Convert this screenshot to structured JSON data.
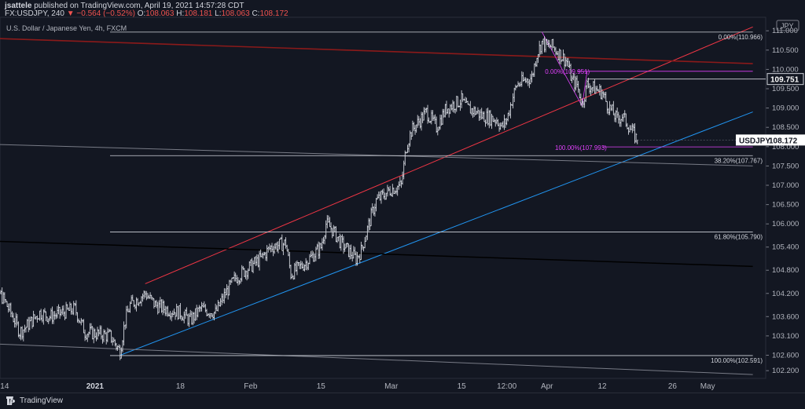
{
  "header": {
    "user": "jsattele",
    "published": "published on TradingView.com, April 19, 2021 14:57:28 CDT",
    "symbol_line": "FX:USDJPY, 240",
    "change": "▼ −0.564 (−0.52%)",
    "ohlc": [
      {
        "label": "O:",
        "value": "108.063"
      },
      {
        "label": "H:",
        "value": "108.181"
      },
      {
        "label": "L:",
        "value": "108.063"
      },
      {
        "label": "C:",
        "value": "108.172"
      }
    ]
  },
  "chart_info": "U.S. Dollar / Japanese Yen, 4h, FXCM",
  "currency": "JPY",
  "footer": {
    "brand": "TradingView"
  },
  "colors": {
    "background": "#131722",
    "candles": "#d1d4dc",
    "red_channel": "#f23645",
    "dark_red_line": "#8b1a1a",
    "blue_trend": "#2196f3",
    "fib_magenta": "#e040fb",
    "gray_line": "#787b86",
    "black_line": "#000000"
  },
  "chart_data": {
    "type": "candlestick",
    "title": "U.S. Dollar / Japanese Yen, 4h, FXCM",
    "ylim": [
      102.0,
      111.35
    ],
    "y_ticks": [
      "111.000",
      "110.500",
      "110.000",
      "109.500",
      "109.000",
      "108.500",
      "108.000",
      "107.500",
      "107.000",
      "106.500",
      "106.000",
      "105.400",
      "104.800",
      "104.200",
      "103.600",
      "103.100",
      "102.600",
      "102.200"
    ],
    "x_ticks": [
      "14",
      "2021",
      "18",
      "Feb",
      "15",
      "Mar",
      "15",
      "12:00",
      "Apr",
      "12",
      "26",
      "May"
    ],
    "close_series": [
      {
        "d": "Dec 10",
        "v": 104.3
      },
      {
        "d": "Dec 11",
        "v": 104.6
      },
      {
        "d": "Dec 14",
        "v": 104.0
      },
      {
        "d": "Dec 16",
        "v": 103.5
      },
      {
        "d": "Dec 17",
        "v": 103.2
      },
      {
        "d": "Dec 18",
        "v": 103.3
      },
      {
        "d": "Dec 21",
        "v": 103.7
      },
      {
        "d": "Dec 23",
        "v": 103.6
      },
      {
        "d": "Dec 28",
        "v": 103.8
      },
      {
        "d": "Dec 30",
        "v": 103.2
      },
      {
        "d": "Jan 4",
        "v": 103.1
      },
      {
        "d": "Jan 6",
        "v": 102.7
      },
      {
        "d": "Jan 7",
        "v": 103.5
      },
      {
        "d": "Jan 8",
        "v": 103.9
      },
      {
        "d": "Jan 11",
        "v": 104.2
      },
      {
        "d": "Jan 13",
        "v": 103.9
      },
      {
        "d": "Jan 15",
        "v": 103.8
      },
      {
        "d": "Jan 18",
        "v": 103.7
      },
      {
        "d": "Jan 20",
        "v": 103.5
      },
      {
        "d": "Jan 22",
        "v": 103.8
      },
      {
        "d": "Jan 25",
        "v": 103.7
      },
      {
        "d": "Jan 27",
        "v": 104.2
      },
      {
        "d": "Jan 29",
        "v": 104.6
      },
      {
        "d": "Feb 1",
        "v": 104.9
      },
      {
        "d": "Feb 3",
        "v": 105.1
      },
      {
        "d": "Feb 5",
        "v": 105.4
      },
      {
        "d": "Feb 8",
        "v": 105.5
      },
      {
        "d": "Feb 9",
        "v": 104.7
      },
      {
        "d": "Feb 11",
        "v": 104.9
      },
      {
        "d": "Feb 12",
        "v": 105.0
      },
      {
        "d": "Feb 15",
        "v": 105.4
      },
      {
        "d": "Feb 16",
        "v": 106.0
      },
      {
        "d": "Feb 17",
        "v": 105.9
      },
      {
        "d": "Feb 19",
        "v": 105.5
      },
      {
        "d": "Feb 22",
        "v": 105.1
      },
      {
        "d": "Feb 23",
        "v": 105.3
      },
      {
        "d": "Feb 25",
        "v": 106.2
      },
      {
        "d": "Feb 26",
        "v": 106.6
      },
      {
        "d": "Mar 1",
        "v": 106.9
      },
      {
        "d": "Mar 3",
        "v": 107.0
      },
      {
        "d": "Mar 4",
        "v": 108.0
      },
      {
        "d": "Mar 5",
        "v": 108.4
      },
      {
        "d": "Mar 8",
        "v": 108.9
      },
      {
        "d": "Mar 9",
        "v": 108.7
      },
      {
        "d": "Mar 10",
        "v": 108.5
      },
      {
        "d": "Mar 12",
        "v": 109.0
      },
      {
        "d": "Mar 15",
        "v": 109.2
      },
      {
        "d": "Mar 16",
        "v": 109.0
      },
      {
        "d": "Mar 18",
        "v": 108.9
      },
      {
        "d": "Mar 19",
        "v": 108.8
      },
      {
        "d": "Mar 22",
        "v": 108.7
      },
      {
        "d": "Mar 23",
        "v": 108.5
      },
      {
        "d": "Mar 24",
        "v": 108.7
      },
      {
        "d": "Mar 25",
        "v": 109.2
      },
      {
        "d": "Mar 26",
        "v": 109.6
      },
      {
        "d": "Mar 29",
        "v": 109.8
      },
      {
        "d": "Mar 30",
        "v": 110.4
      },
      {
        "d": "Mar 31",
        "v": 110.7
      },
      {
        "d": "Apr 1",
        "v": 110.6
      },
      {
        "d": "Apr 2",
        "v": 110.6
      },
      {
        "d": "Apr 5",
        "v": 110.2
      },
      {
        "d": "Apr 6",
        "v": 109.7
      },
      {
        "d": "Apr 7",
        "v": 109.6
      },
      {
        "d": "Apr 8",
        "v": 109.1
      },
      {
        "d": "Apr 9",
        "v": 109.6
      },
      {
        "d": "Apr 12",
        "v": 109.4
      },
      {
        "d": "Apr 13",
        "v": 109.1
      },
      {
        "d": "Apr 14",
        "v": 108.9
      },
      {
        "d": "Apr 15",
        "v": 108.7
      },
      {
        "d": "Apr 16",
        "v": 108.8
      },
      {
        "d": "Apr 19",
        "v": 108.17
      }
    ],
    "last_price": {
      "symbol": "USDJPY",
      "value": "108.172"
    },
    "marked_level": "109.751",
    "fib_levels": [
      {
        "text": "0.00%(110.966)",
        "price": 110.966,
        "color": "#787b86"
      },
      {
        "text": "38.20%(107.767)",
        "price": 107.767,
        "color": "#787b86"
      },
      {
        "text": "61.80%(105.790)",
        "price": 105.79,
        "color": "#787b86"
      },
      {
        "text": "100.00%(102.591)",
        "price": 102.591,
        "color": "#787b86"
      },
      {
        "text": "0.00%(109.951)",
        "price": 109.951,
        "color": "#e040fb"
      },
      {
        "text": "100.00%(107.993)",
        "price": 107.993,
        "color": "#e040fb"
      }
    ],
    "trend_lines": [
      {
        "name": "red channel top",
        "from": [
          "Jan 11",
          104.45
        ],
        "to": [
          "May 12",
          111.1
        ],
        "color": "#f23645"
      },
      {
        "name": "blue trendline",
        "from": [
          "Jan 6",
          102.6
        ],
        "to": [
          "May 12",
          108.9
        ],
        "color": "#2196f3"
      },
      {
        "name": "dark red resistance",
        "from": [
          "Dec 1",
          110.85
        ],
        "to": [
          "May 12",
          110.15
        ],
        "color": "#8b1a1a"
      },
      {
        "name": "black line",
        "from": [
          "Dec 1",
          105.6
        ],
        "to": [
          "May 12",
          104.9
        ],
        "color": "#000000"
      },
      {
        "name": "gray line upper",
        "from": [
          "Dec 1",
          108.1
        ],
        "to": [
          "May 12",
          107.5
        ],
        "color": "#787b86"
      },
      {
        "name": "gray line lower",
        "from": [
          "Dec 1",
          102.95
        ],
        "to": [
          "May 12",
          102.1
        ],
        "color": "#787b86"
      }
    ],
    "grid": false
  }
}
